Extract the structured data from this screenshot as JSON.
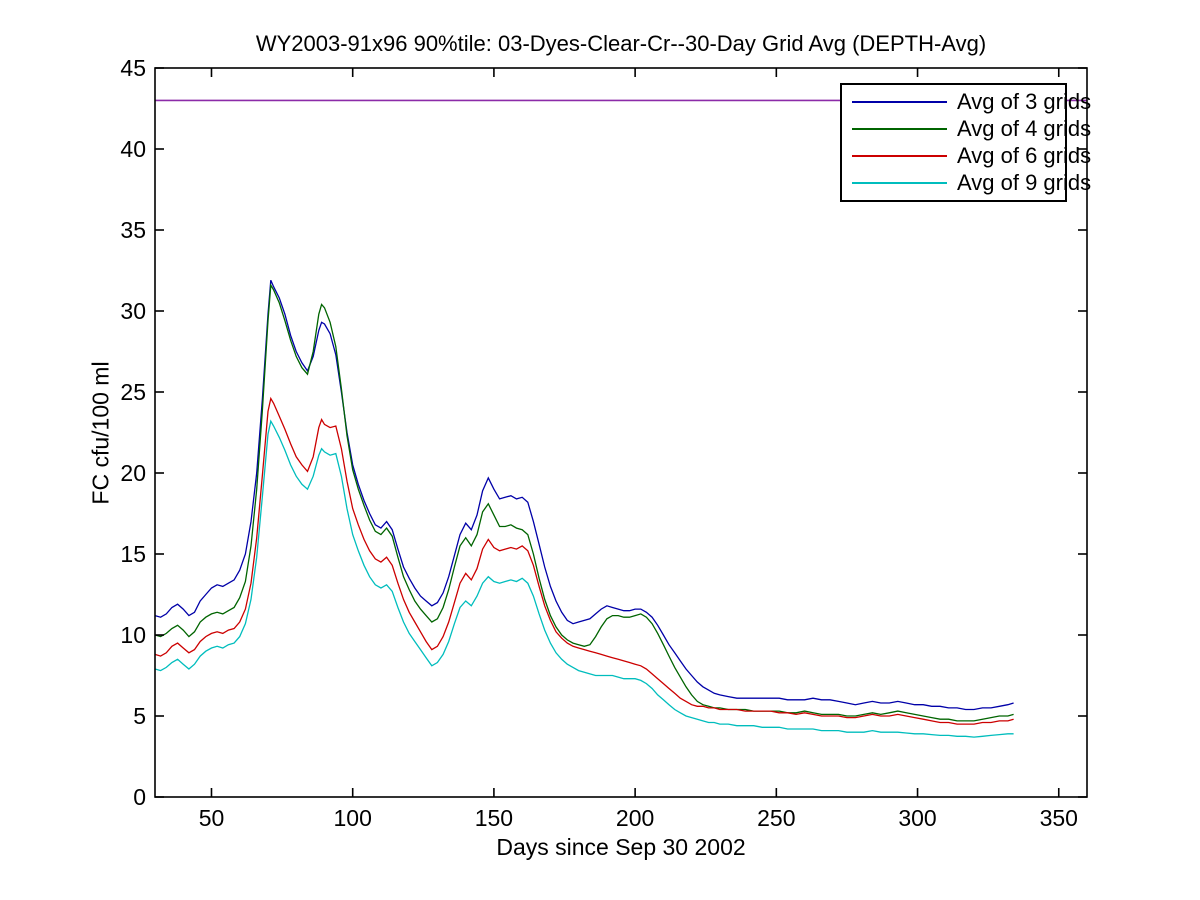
{
  "chart_data": {
    "type": "line",
    "title": "WY2003-91x96 90%tile: 03-Dyes-Clear-Cr--30-Day Grid Avg (DEPTH-Avg)",
    "xlabel": "Days since Sep 30 2002",
    "ylabel": "FC cfu/100 ml",
    "xlim": [
      30,
      360
    ],
    "ylim": [
      0,
      45
    ],
    "xticks": [
      50,
      100,
      150,
      200,
      250,
      300,
      350
    ],
    "yticks": [
      0,
      5,
      10,
      15,
      20,
      25,
      30,
      35,
      40,
      45
    ],
    "grid": false,
    "legend_position": "top-right",
    "reference_line": {
      "y": 43,
      "color": "#8C2BA8"
    },
    "x": [
      30,
      32,
      34,
      36,
      38,
      40,
      42,
      44,
      46,
      48,
      50,
      52,
      54,
      56,
      58,
      60,
      62,
      64,
      66,
      68,
      70,
      71,
      72,
      74,
      76,
      78,
      80,
      82,
      84,
      86,
      88,
      89,
      90,
      92,
      94,
      96,
      98,
      100,
      102,
      104,
      106,
      108,
      110,
      112,
      114,
      116,
      118,
      120,
      122,
      124,
      126,
      128,
      130,
      132,
      134,
      136,
      138,
      140,
      142,
      144,
      146,
      148,
      150,
      152,
      154,
      156,
      158,
      160,
      162,
      164,
      166,
      168,
      170,
      172,
      174,
      176,
      178,
      180,
      182,
      184,
      186,
      188,
      190,
      192,
      194,
      196,
      198,
      200,
      202,
      204,
      206,
      208,
      210,
      212,
      214,
      216,
      218,
      220,
      222,
      224,
      226,
      228,
      230,
      233,
      236,
      239,
      242,
      245,
      248,
      251,
      254,
      257,
      260,
      263,
      266,
      269,
      272,
      275,
      278,
      281,
      284,
      287,
      290,
      293,
      296,
      299,
      302,
      305,
      308,
      311,
      314,
      317,
      320,
      323,
      326,
      329,
      332,
      334
    ],
    "series": [
      {
        "name": "Avg of 3 grids",
        "color": "#0000A8",
        "values": [
          11.2,
          11.1,
          11.3,
          11.7,
          11.9,
          11.6,
          11.2,
          11.4,
          12.1,
          12.5,
          12.9,
          13.1,
          13.0,
          13.2,
          13.4,
          14.0,
          15.0,
          17.0,
          20.0,
          24.5,
          29.8,
          31.9,
          31.5,
          30.8,
          29.8,
          28.5,
          27.5,
          26.8,
          26.3,
          27.2,
          28.8,
          29.3,
          29.2,
          28.6,
          27.3,
          25.0,
          22.5,
          20.5,
          19.3,
          18.3,
          17.5,
          16.8,
          16.6,
          17.0,
          16.5,
          15.3,
          14.2,
          13.5,
          12.9,
          12.4,
          12.1,
          11.8,
          12.0,
          12.6,
          13.6,
          14.9,
          16.2,
          16.9,
          16.5,
          17.4,
          18.9,
          19.7,
          19.0,
          18.4,
          18.5,
          18.6,
          18.4,
          18.5,
          18.2,
          17.0,
          15.6,
          14.2,
          13.0,
          12.1,
          11.4,
          10.9,
          10.7,
          10.8,
          10.9,
          11.0,
          11.3,
          11.6,
          11.8,
          11.7,
          11.6,
          11.5,
          11.5,
          11.6,
          11.6,
          11.4,
          11.1,
          10.6,
          10.0,
          9.4,
          8.9,
          8.4,
          7.9,
          7.5,
          7.1,
          6.8,
          6.6,
          6.4,
          6.3,
          6.2,
          6.1,
          6.1,
          6.1,
          6.1,
          6.1,
          6.1,
          6.0,
          6.0,
          6.0,
          6.1,
          6.0,
          6.0,
          5.9,
          5.8,
          5.7,
          5.8,
          5.9,
          5.8,
          5.8,
          5.9,
          5.8,
          5.7,
          5.7,
          5.6,
          5.6,
          5.5,
          5.5,
          5.4,
          5.4,
          5.5,
          5.5,
          5.6,
          5.7,
          5.8
        ]
      },
      {
        "name": "Avg of 4 grids",
        "color": "#006400",
        "values": [
          10.0,
          9.9,
          10.1,
          10.4,
          10.6,
          10.3,
          9.9,
          10.2,
          10.8,
          11.1,
          11.3,
          11.4,
          11.3,
          11.5,
          11.7,
          12.3,
          13.3,
          15.5,
          19.0,
          23.8,
          29.4,
          31.6,
          31.3,
          30.5,
          29.4,
          28.2,
          27.2,
          26.5,
          26.1,
          27.5,
          29.8,
          30.4,
          30.2,
          29.3,
          27.8,
          25.2,
          22.3,
          20.2,
          19.0,
          18.0,
          17.1,
          16.4,
          16.2,
          16.6,
          16.1,
          14.8,
          13.6,
          12.8,
          12.1,
          11.6,
          11.2,
          10.8,
          11.0,
          11.7,
          12.8,
          14.2,
          15.5,
          16.0,
          15.5,
          16.2,
          17.6,
          18.1,
          17.4,
          16.7,
          16.7,
          16.8,
          16.6,
          16.5,
          16.2,
          15.0,
          13.5,
          12.2,
          11.2,
          10.5,
          10.0,
          9.7,
          9.5,
          9.4,
          9.3,
          9.4,
          9.9,
          10.5,
          11.0,
          11.2,
          11.2,
          11.1,
          11.1,
          11.2,
          11.3,
          11.1,
          10.7,
          10.1,
          9.4,
          8.7,
          8.0,
          7.4,
          6.8,
          6.3,
          5.9,
          5.7,
          5.6,
          5.5,
          5.5,
          5.4,
          5.4,
          5.4,
          5.3,
          5.3,
          5.3,
          5.3,
          5.2,
          5.2,
          5.3,
          5.2,
          5.1,
          5.1,
          5.1,
          5.0,
          5.0,
          5.1,
          5.2,
          5.1,
          5.2,
          5.3,
          5.2,
          5.1,
          5.0,
          4.9,
          4.8,
          4.8,
          4.7,
          4.7,
          4.7,
          4.8,
          4.9,
          5.0,
          5.0,
          5.1
        ]
      },
      {
        "name": "Avg of 6 grids",
        "color": "#CC0000",
        "values": [
          8.8,
          8.7,
          8.9,
          9.3,
          9.5,
          9.2,
          8.9,
          9.1,
          9.6,
          9.9,
          10.1,
          10.2,
          10.1,
          10.3,
          10.4,
          10.8,
          11.6,
          13.2,
          16.0,
          19.8,
          23.8,
          24.6,
          24.3,
          23.5,
          22.7,
          21.8,
          21.0,
          20.5,
          20.1,
          21.0,
          22.8,
          23.3,
          23.0,
          22.8,
          22.9,
          21.5,
          19.5,
          17.8,
          16.8,
          15.9,
          15.2,
          14.7,
          14.5,
          14.8,
          14.3,
          13.2,
          12.2,
          11.4,
          10.8,
          10.2,
          9.6,
          9.1,
          9.3,
          9.9,
          10.8,
          12.0,
          13.2,
          13.8,
          13.4,
          14.1,
          15.3,
          15.9,
          15.4,
          15.2,
          15.3,
          15.4,
          15.3,
          15.5,
          15.2,
          14.3,
          13.0,
          11.8,
          10.9,
          10.2,
          9.8,
          9.5,
          9.3,
          9.2,
          9.1,
          9.0,
          8.9,
          8.8,
          8.7,
          8.6,
          8.5,
          8.4,
          8.3,
          8.2,
          8.1,
          7.9,
          7.6,
          7.3,
          7.0,
          6.7,
          6.4,
          6.1,
          5.9,
          5.7,
          5.6,
          5.6,
          5.5,
          5.5,
          5.4,
          5.4,
          5.4,
          5.3,
          5.3,
          5.3,
          5.3,
          5.2,
          5.2,
          5.1,
          5.2,
          5.1,
          5.0,
          5.0,
          5.0,
          4.9,
          4.9,
          5.0,
          5.1,
          5.0,
          5.0,
          5.1,
          5.0,
          4.9,
          4.8,
          4.7,
          4.6,
          4.6,
          4.5,
          4.5,
          4.5,
          4.6,
          4.6,
          4.7,
          4.7,
          4.8
        ]
      },
      {
        "name": "Avg of 9 grids",
        "color": "#00BDBD",
        "values": [
          7.9,
          7.8,
          8.0,
          8.3,
          8.5,
          8.2,
          7.9,
          8.2,
          8.7,
          9.0,
          9.2,
          9.3,
          9.2,
          9.4,
          9.5,
          9.9,
          10.7,
          12.2,
          14.8,
          18.5,
          22.4,
          23.2,
          22.9,
          22.2,
          21.4,
          20.5,
          19.8,
          19.3,
          19.0,
          19.8,
          21.1,
          21.5,
          21.3,
          21.1,
          21.2,
          19.8,
          17.8,
          16.2,
          15.2,
          14.3,
          13.6,
          13.1,
          12.9,
          13.1,
          12.7,
          11.7,
          10.8,
          10.1,
          9.6,
          9.1,
          8.6,
          8.1,
          8.3,
          8.8,
          9.6,
          10.7,
          11.7,
          12.1,
          11.8,
          12.4,
          13.2,
          13.6,
          13.3,
          13.2,
          13.3,
          13.4,
          13.3,
          13.5,
          13.2,
          12.4,
          11.3,
          10.3,
          9.5,
          8.9,
          8.5,
          8.2,
          8.0,
          7.8,
          7.7,
          7.6,
          7.5,
          7.5,
          7.5,
          7.5,
          7.4,
          7.3,
          7.3,
          7.3,
          7.2,
          7.0,
          6.7,
          6.3,
          6.0,
          5.7,
          5.4,
          5.2,
          5.0,
          4.9,
          4.8,
          4.7,
          4.6,
          4.6,
          4.5,
          4.5,
          4.4,
          4.4,
          4.4,
          4.3,
          4.3,
          4.3,
          4.2,
          4.2,
          4.2,
          4.2,
          4.1,
          4.1,
          4.1,
          4.0,
          4.0,
          4.0,
          4.1,
          4.0,
          4.0,
          4.0,
          3.95,
          3.9,
          3.9,
          3.85,
          3.8,
          3.8,
          3.75,
          3.75,
          3.7,
          3.75,
          3.8,
          3.85,
          3.9,
          3.9
        ]
      }
    ]
  }
}
